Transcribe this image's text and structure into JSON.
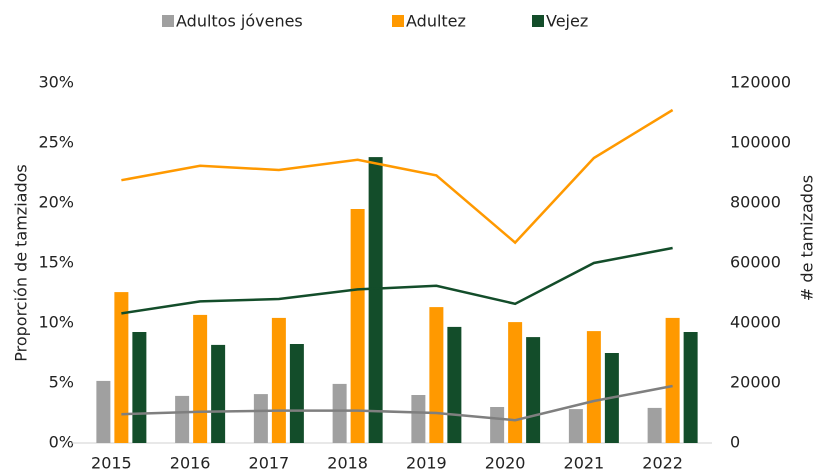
{
  "chart_data": {
    "type": "bar_line",
    "categories": [
      "2015",
      "2016",
      "2017",
      "2018",
      "2019",
      "2020",
      "2021",
      "2022"
    ],
    "series": [
      {
        "name": "Adultos jóvenes",
        "color": "#a0a0a0",
        "axis": "y2",
        "values": [
          20700,
          15700,
          16300,
          19700,
          16000,
          12000,
          11300,
          11700
        ],
        "line_values": [
          2.4,
          2.6,
          2.7,
          2.7,
          2.5,
          1.9,
          3.5,
          4.75
        ]
      },
      {
        "name": "Adultez",
        "color": "#ff9900",
        "axis": "y2",
        "values": [
          50300,
          42700,
          41700,
          78000,
          45300,
          40300,
          37300,
          41700
        ],
        "line_values": [
          21.9,
          23.1,
          22.75,
          23.6,
          22.3,
          16.7,
          23.75,
          27.75
        ]
      },
      {
        "name": "Vejez",
        "color": "#134d2a",
        "axis": "y2",
        "values": [
          37000,
          32700,
          33000,
          95300,
          38700,
          35300,
          30000,
          37000
        ],
        "line_values": [
          10.8,
          11.8,
          12,
          12.8,
          13.1,
          11.6,
          15,
          16.25
        ]
      }
    ],
    "ylabel": "Proporción de tamziados",
    "y2label": "# de tamizados",
    "ylim": [
      0,
      30
    ],
    "yticks": [
      {
        "value": 0,
        "label": "0%"
      },
      {
        "value": 5,
        "label": "5%"
      },
      {
        "value": 10,
        "label": "10%"
      },
      {
        "value": 15,
        "label": "15%"
      },
      {
        "value": 20,
        "label": "20%"
      },
      {
        "value": 25,
        "label": "25%"
      },
      {
        "value": 30,
        "label": "30%"
      }
    ],
    "y2lim": [
      0,
      120000
    ],
    "y2ticks": [
      0,
      20000,
      40000,
      60000,
      80000,
      100000,
      120000
    ],
    "legend": "top"
  }
}
